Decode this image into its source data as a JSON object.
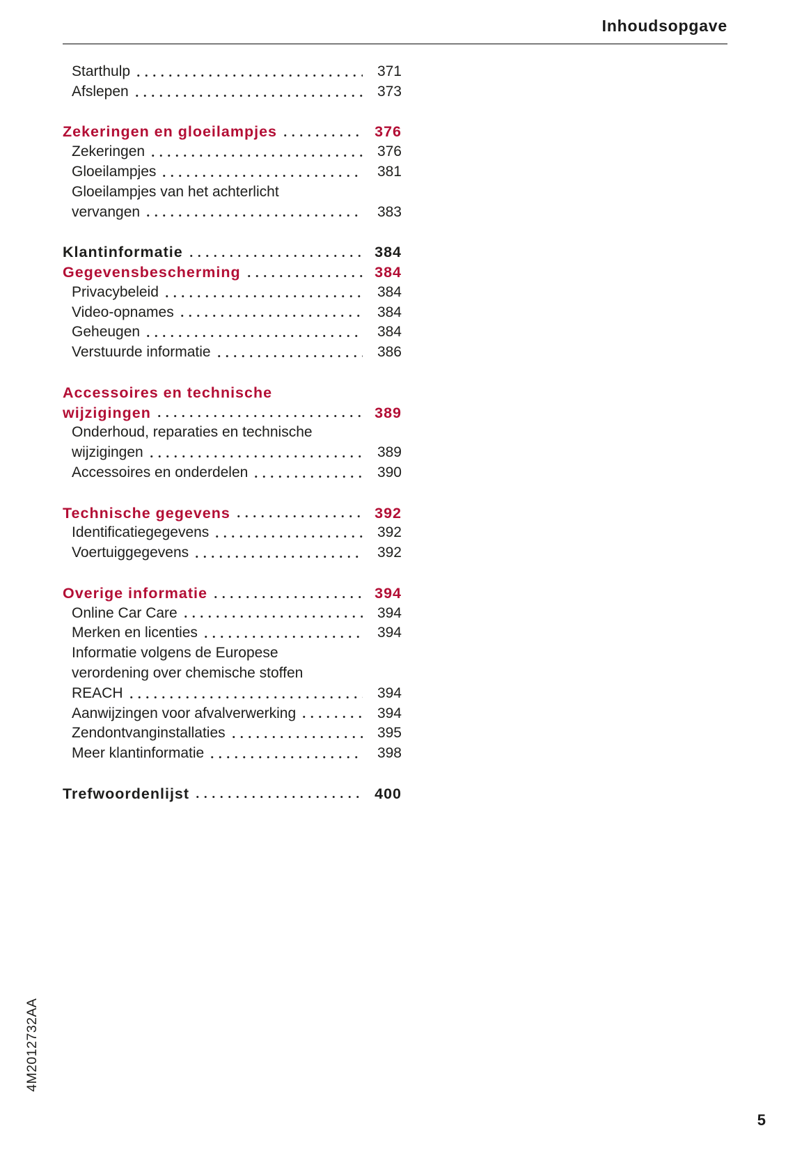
{
  "header": {
    "title": "Inhoudsopgave"
  },
  "footer": {
    "doc_code": "4M2012732AA",
    "page_number": "5"
  },
  "colors": {
    "accent_red": "#b30e35",
    "text": "#1d1d1b",
    "rule_gray": "#7d7d7d"
  },
  "toc": {
    "entries": [
      {
        "label": "Starthulp",
        "page": "371",
        "style": "sub",
        "leader": true
      },
      {
        "label": "Afslepen",
        "page": "373",
        "style": "sub",
        "leader": true
      },
      {
        "label": "Zekeringen en gloeilampjes",
        "page": "376",
        "style": "heading-red",
        "leader": true,
        "space_before": true
      },
      {
        "label": "Zekeringen",
        "page": "376",
        "style": "sub",
        "leader": true
      },
      {
        "label": "Gloeilampjes",
        "page": "381",
        "style": "sub",
        "leader": true
      },
      {
        "label": "Gloeilampjes van het achterlicht",
        "page": "",
        "style": "sub",
        "leader": false
      },
      {
        "label": "vervangen",
        "page": "383",
        "style": "sub",
        "leader": true
      },
      {
        "label": "Klantinformatie",
        "page": "384",
        "style": "heading-black",
        "leader": true,
        "space_before": true
      },
      {
        "label": "Gegevensbescherming",
        "page": "384",
        "style": "heading-red",
        "leader": true
      },
      {
        "label": "Privacybeleid",
        "page": "384",
        "style": "sub",
        "leader": true
      },
      {
        "label": "Video-opnames",
        "page": "384",
        "style": "sub",
        "leader": true
      },
      {
        "label": "Geheugen",
        "page": "384",
        "style": "sub",
        "leader": true
      },
      {
        "label": "Verstuurde informatie",
        "page": "386",
        "style": "sub",
        "leader": true
      },
      {
        "label": "Accessoires en technische",
        "page": "",
        "style": "heading-red",
        "leader": false,
        "space_before": true
      },
      {
        "label": "wijzigingen",
        "page": "389",
        "style": "heading-red",
        "leader": true
      },
      {
        "label": "Onderhoud, reparaties en technische",
        "page": "",
        "style": "sub",
        "leader": false
      },
      {
        "label": "wijzigingen",
        "page": "389",
        "style": "sub",
        "leader": true
      },
      {
        "label": "Accessoires en onderdelen",
        "page": "390",
        "style": "sub",
        "leader": true
      },
      {
        "label": "Technische gegevens",
        "page": "392",
        "style": "heading-red",
        "leader": true,
        "space_before": true
      },
      {
        "label": "Identificatiegegevens",
        "page": "392",
        "style": "sub",
        "leader": true
      },
      {
        "label": "Voertuiggegevens",
        "page": "392",
        "style": "sub",
        "leader": true
      },
      {
        "label": "Overige informatie",
        "page": "394",
        "style": "heading-red",
        "leader": true,
        "space_before": true
      },
      {
        "label": "Online Car Care",
        "page": "394",
        "style": "sub",
        "leader": true
      },
      {
        "label": "Merken en licenties",
        "page": "394",
        "style": "sub",
        "leader": true
      },
      {
        "label": "Informatie volgens de Europese",
        "page": "",
        "style": "sub",
        "leader": false
      },
      {
        "label": "verordening over chemische stoffen",
        "page": "",
        "style": "sub",
        "leader": false
      },
      {
        "label": "REACH",
        "page": "394",
        "style": "sub",
        "leader": true
      },
      {
        "label": "Aanwijzingen voor afvalverwerking",
        "page": "394",
        "style": "sub",
        "leader": true
      },
      {
        "label": "Zendontvanginstallaties",
        "page": "395",
        "style": "sub",
        "leader": true
      },
      {
        "label": "Meer klantinformatie",
        "page": "398",
        "style": "sub",
        "leader": true
      },
      {
        "label": "Trefwoordenlijst",
        "page": "400",
        "style": "heading-black",
        "leader": true,
        "space_before": true
      }
    ]
  }
}
